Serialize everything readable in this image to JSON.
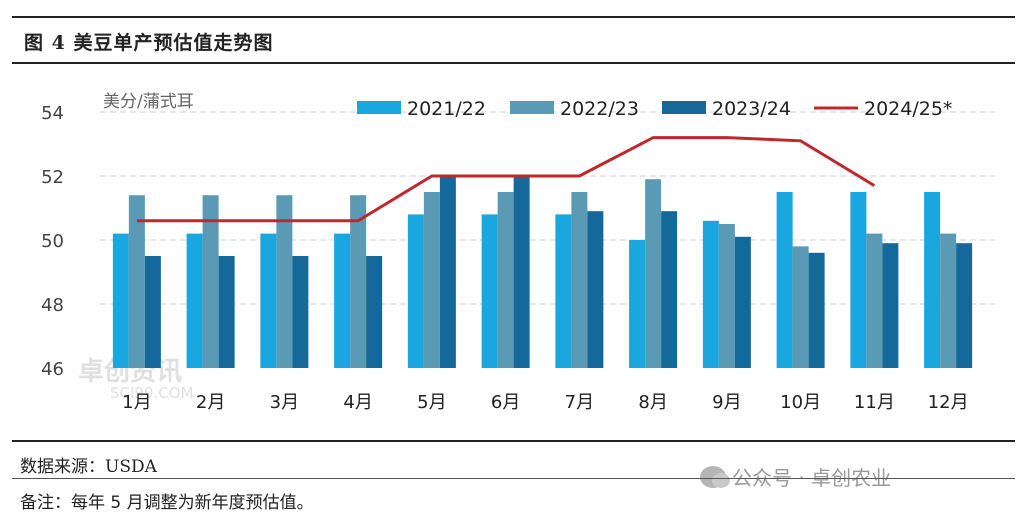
{
  "figure_title": "图 4 美豆单产预估值走势图",
  "source": "数据来源：USDA",
  "note": "备注：每年 5 月调整为新年度预估值。",
  "watermark_chart": "卓创资讯",
  "watermark_chart_url": "SCI99.COM",
  "watermark_footer": "公众号 · 卓创农业",
  "colors": {
    "series_2021_22": "#1aa6df",
    "series_2022_23": "#5b9ab5",
    "series_2023_24": "#14699a",
    "series_2024_25": "#c0272d",
    "rule": "#222222",
    "grid": "#d0d0d0"
  },
  "chart_data": {
    "type": "bar",
    "unit_label": "美分/蒲式耳",
    "categories": [
      "1月",
      "2月",
      "3月",
      "4月",
      "5月",
      "6月",
      "7月",
      "8月",
      "9月",
      "10月",
      "11月",
      "12月"
    ],
    "ylim": [
      46,
      54
    ],
    "yticks": [
      46,
      48,
      50,
      52,
      54
    ],
    "grid": "dashed horizontal",
    "legend_position": "top",
    "series": [
      {
        "name": "2021/22",
        "kind": "bar",
        "values": [
          50.2,
          50.2,
          50.2,
          50.2,
          50.8,
          50.8,
          50.8,
          50.0,
          50.6,
          51.5,
          51.5,
          51.5
        ]
      },
      {
        "name": "2022/23",
        "kind": "bar",
        "values": [
          51.4,
          51.4,
          51.4,
          51.4,
          51.5,
          51.5,
          51.5,
          51.9,
          50.5,
          49.8,
          50.2,
          50.2
        ]
      },
      {
        "name": "2023/24",
        "kind": "bar",
        "values": [
          49.5,
          49.5,
          49.5,
          49.5,
          52.0,
          52.0,
          50.9,
          50.9,
          50.1,
          49.6,
          49.9,
          49.9
        ]
      },
      {
        "name": "2024/25*",
        "kind": "line",
        "values": [
          50.6,
          50.6,
          50.6,
          50.6,
          52.0,
          52.0,
          52.0,
          53.2,
          53.2,
          53.1,
          51.7,
          null
        ]
      }
    ]
  }
}
